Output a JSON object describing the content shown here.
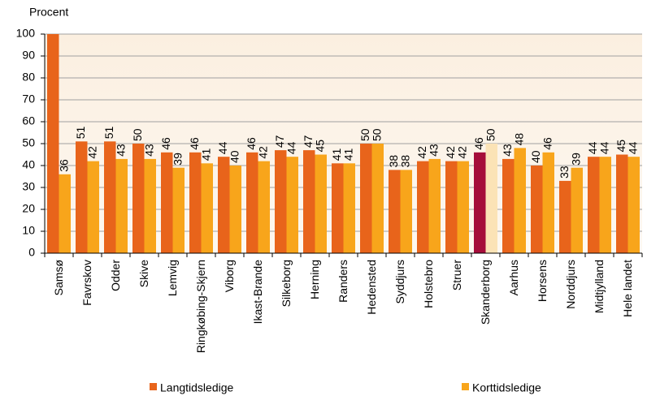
{
  "chart_data": {
    "type": "bar",
    "y_label": "Procent",
    "categories": [
      "Samsø",
      "Favrskov",
      "Odder",
      "Skive",
      "Lemvig",
      "Ringkøbing-Skjern",
      "Viborg",
      "Ikast-Brande",
      "Silkeborg",
      "Herning",
      "Randers",
      "Hedensted",
      "Syddjurs",
      "Holstebro",
      "Struer",
      "Skanderborg",
      "Aarhus",
      "Horsens",
      "Norddjurs",
      "Midtjylland",
      "Hele landet"
    ],
    "series": [
      {
        "name": "Langtidsledige",
        "color": "#e8641b",
        "highlight_color": "#a50d3a",
        "values": [
          100,
          51,
          51,
          50,
          46,
          46,
          44,
          46,
          47,
          47,
          41,
          50,
          38,
          42,
          42,
          46,
          43,
          40,
          33,
          44,
          45
        ],
        "value_labels": [
          null,
          "51",
          "51",
          "50",
          "46",
          "46",
          "44",
          "46",
          "47",
          "47",
          "41",
          "50",
          "38",
          "42",
          "42",
          "46",
          "43",
          "40",
          "33",
          "44",
          "45"
        ]
      },
      {
        "name": "Korttidsledige",
        "color": "#f8a51b",
        "highlight_color": "#fbe3b6",
        "values": [
          36,
          42,
          43,
          43,
          39,
          41,
          40,
          42,
          44,
          45,
          41,
          50,
          38,
          43,
          42,
          50,
          48,
          46,
          39,
          44,
          44
        ],
        "value_labels": [
          "36",
          "42",
          "43",
          "43",
          "39",
          "41",
          "40",
          "42",
          "44",
          "45",
          "41",
          "50",
          "38",
          "43",
          "42",
          "50",
          "48",
          "46",
          "39",
          "44",
          "44"
        ]
      }
    ],
    "highlight": "Skanderborg",
    "ylim": [
      0,
      100
    ],
    "yticks": [
      0,
      10,
      20,
      30,
      40,
      50,
      60,
      70,
      80,
      90,
      100
    ],
    "grid": true
  }
}
